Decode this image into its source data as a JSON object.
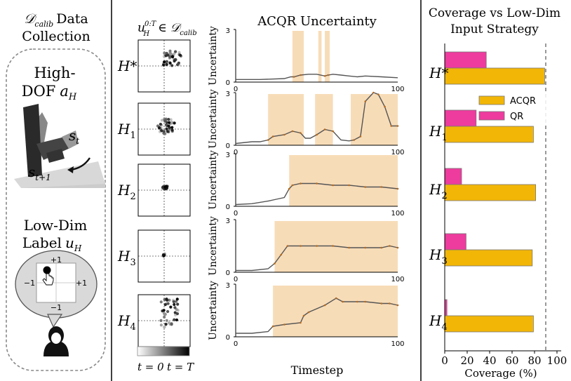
{
  "panel_left": {
    "title_line1": "Data",
    "title_line2": "Collection",
    "calib_symbol": "𝒟",
    "calib_sub": "calib",
    "high_dof_line1": "High-",
    "high_dof_line2": "DOF",
    "high_dof_var": "a",
    "high_dof_sub": "H",
    "state_t": "s",
    "state_t_sub": "t",
    "state_t1": "s",
    "state_t1_sub": "t+1",
    "low_dim_line1": "Low-Dim",
    "low_dim_line2": "Label",
    "low_dim_var": "u",
    "low_dim_sub": "H",
    "joystick_labels": [
      "+1",
      "−1",
      "+1",
      "−1"
    ]
  },
  "panel_mid": {
    "scatter_header_u": "u",
    "scatter_header_sup": "0:T",
    "scatter_header_sub": "H",
    "scatter_header_in": "∈",
    "scatter_header_set": "𝒟",
    "scatter_header_set_sub": "calib",
    "colorbar_left": "t = 0",
    "colorbar_right": "t = T",
    "title": "ACQR Uncertainty",
    "xlabel": "Timestep",
    "ylabel": "Uncertainty",
    "rows": [
      {
        "base": "H",
        "mark": "*",
        "sub": ""
      },
      {
        "base": "H",
        "mark": "",
        "sub": "1"
      },
      {
        "base": "H",
        "mark": "",
        "sub": "2"
      },
      {
        "base": "H",
        "mark": "",
        "sub": "3"
      },
      {
        "base": "H",
        "mark": "",
        "sub": "4"
      }
    ],
    "ytick_top": "3",
    "ytick_bottom": "0",
    "xtick_left": "0",
    "xtick_right": "100"
  },
  "chart_data": [
    {
      "type": "line",
      "title": "ACQR Uncertainty",
      "xlabel": "Timestep",
      "ylabel": "Uncertainty",
      "xlim": [
        0,
        100
      ],
      "ylim": [
        0,
        3
      ],
      "series": [
        {
          "name": "H*",
          "x": [
            0,
            15,
            30,
            34,
            36,
            40,
            45,
            50,
            55,
            57,
            60,
            65,
            70,
            75,
            80,
            90,
            100
          ],
          "y": [
            0.15,
            0.15,
            0.2,
            0.3,
            0.3,
            0.4,
            0.45,
            0.45,
            0.35,
            0.4,
            0.45,
            0.4,
            0.35,
            0.3,
            0.35,
            0.3,
            0.25
          ],
          "shaded": [
            [
              35,
              42
            ],
            [
              51,
              53
            ],
            [
              55,
              58
            ]
          ]
        },
        {
          "name": "H1",
          "x": [
            0,
            10,
            15,
            20,
            23,
            30,
            35,
            40,
            43,
            46,
            50,
            55,
            60,
            65,
            70,
            73,
            77,
            80,
            85,
            88,
            92,
            96,
            100
          ],
          "y": [
            0.1,
            0.2,
            0.2,
            0.3,
            0.5,
            0.6,
            0.8,
            0.7,
            0.4,
            0.4,
            0.6,
            0.9,
            0.8,
            0.3,
            0.25,
            0.3,
            0.5,
            2.5,
            3.0,
            2.9,
            2.2,
            1.1,
            1.1
          ],
          "shaded": [
            [
              20,
              42
            ],
            [
              49,
              60
            ],
            [
              71,
              100
            ]
          ]
        },
        {
          "name": "H2",
          "x": [
            0,
            10,
            20,
            25,
            30,
            33,
            35,
            40,
            50,
            60,
            70,
            80,
            90,
            100
          ],
          "y": [
            0.1,
            0.15,
            0.3,
            0.4,
            0.5,
            1.0,
            1.2,
            1.3,
            1.3,
            1.2,
            1.2,
            1.1,
            1.1,
            1.0
          ],
          "shaded": [
            [
              33,
              100
            ]
          ]
        },
        {
          "name": "H3",
          "x": [
            0,
            10,
            20,
            24,
            28,
            32,
            40,
            50,
            60,
            70,
            80,
            90,
            95,
            100
          ],
          "y": [
            0.1,
            0.1,
            0.2,
            0.5,
            1.0,
            1.5,
            1.5,
            1.5,
            1.5,
            1.4,
            1.4,
            1.4,
            1.5,
            1.4
          ],
          "shaded": [
            [
              24,
              100
            ]
          ]
        },
        {
          "name": "H4",
          "x": [
            0,
            10,
            20,
            23,
            30,
            40,
            42,
            45,
            55,
            62,
            66,
            75,
            80,
            90,
            95,
            100
          ],
          "y": [
            0.2,
            0.2,
            0.3,
            0.6,
            0.7,
            0.8,
            1.2,
            1.4,
            1.8,
            2.2,
            2.0,
            2.0,
            2.0,
            1.9,
            1.9,
            1.8
          ],
          "shaded": [
            [
              23,
              100
            ]
          ]
        }
      ]
    },
    {
      "type": "bar",
      "orientation": "horizontal",
      "title": "Coverage vs Low-Dim Input Strategy",
      "xlabel": "Coverage (%)",
      "xlim": [
        0,
        100
      ],
      "xticks": [
        0,
        20,
        40,
        60,
        80,
        100
      ],
      "categories": [
        "H*",
        "H1",
        "H2",
        "H3",
        "H4"
      ],
      "category_marks": [
        "*",
        "",
        "",
        "",
        ""
      ],
      "category_subs": [
        "",
        "1",
        "2",
        "3",
        "4"
      ],
      "reference_line": 90,
      "legend_position": "upper-right",
      "series": [
        {
          "name": "ACQR",
          "color": "#f2b607",
          "values": [
            89,
            79,
            81,
            78,
            79
          ]
        },
        {
          "name": "QR",
          "color": "#ee3b9e",
          "values": [
            37,
            28,
            15,
            19,
            2
          ]
        }
      ]
    }
  ],
  "colors": {
    "acqr": "#f2b607",
    "qr": "#ee3b9e",
    "shade": "#f7dcb8",
    "line": "#b56a1e",
    "line_gray": "#555555"
  }
}
